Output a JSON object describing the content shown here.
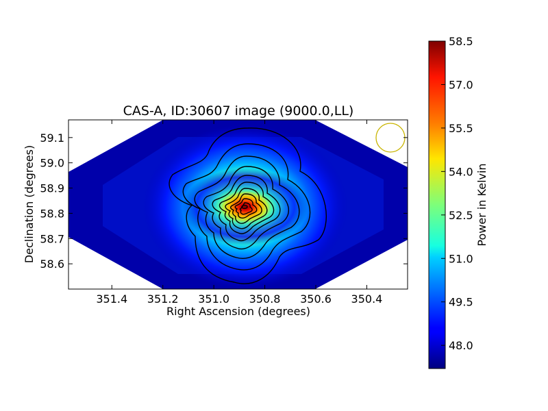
{
  "chart_data": {
    "type": "heatmap",
    "title": "CAS-A, ID:30607 image (9000.0,LL)",
    "xlabel": "Right Ascension (degrees)",
    "ylabel": "Declination (degrees)",
    "x_axis_reversed": true,
    "xlim": [
      351.57,
      350.24
    ],
    "ylim": [
      58.5,
      59.17
    ],
    "x_ticks": [
      "351.4",
      "351.2",
      "351.0",
      "350.8",
      "350.6",
      "350.4"
    ],
    "y_ticks": [
      "58.6",
      "58.7",
      "58.8",
      "58.9",
      "59.0",
      "59.1"
    ],
    "colormap": "jet",
    "colorbar": {
      "label": "Power in Kelvin",
      "range": [
        47.2,
        58.5
      ],
      "ticks": [
        "48.0",
        "49.5",
        "51.0",
        "52.5",
        "54.0",
        "55.5",
        "57.0",
        "58.5"
      ]
    },
    "peak": {
      "ra": 350.87,
      "dec": 58.83,
      "value": 58.5
    },
    "contour_color": "#000000",
    "beam_marker_color": "#c8b400",
    "grid": false
  }
}
